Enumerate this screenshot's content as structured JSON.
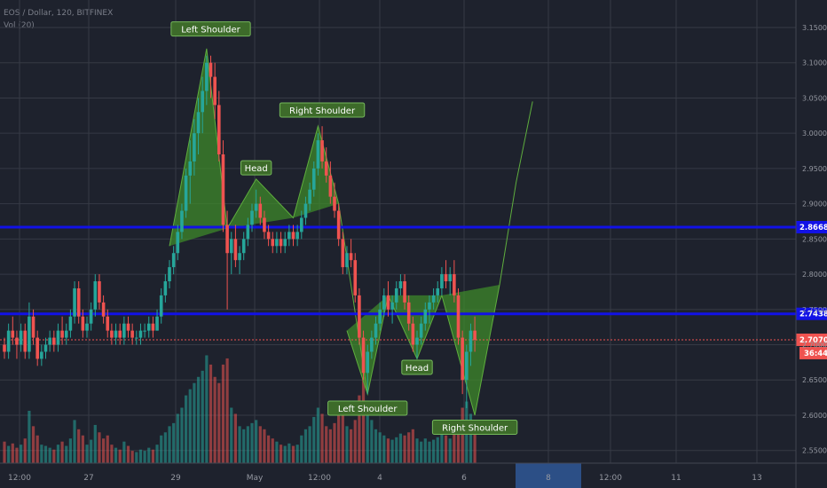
{
  "header": {
    "symbol_line": "EOS / Dollar, 120, BITFINEX",
    "volume_line": "Vol (20)"
  },
  "colors": {
    "background": "#1e222d",
    "up": "#26a69a",
    "down": "#ef5350",
    "pattern_fill": "#3e8e2a",
    "support_line": "#1212e6",
    "price_label": "#ef5350"
  },
  "chart_data": {
    "type": "candlestick",
    "y_axis": {
      "ticks": [
        "2.5500",
        "2.6000",
        "2.6500",
        "2.7000",
        "2.7500",
        "2.8000",
        "2.8500",
        "2.9000",
        "2.9500",
        "3.0000",
        "3.0500",
        "3.1000",
        "3.1500"
      ],
      "range": [
        2.532,
        3.189
      ]
    },
    "x_axis": {
      "ticks": [
        "12:00",
        "27",
        "29",
        "May",
        "12:00",
        "4",
        "6",
        "8",
        "12:00",
        "11",
        "13"
      ],
      "highlighted_tick": "8"
    },
    "horizontal_levels": [
      {
        "label": "2.8668",
        "value": 2.8668,
        "color": "#1212e6"
      },
      {
        "label": "2.7438",
        "value": 2.7438,
        "color": "#1212e6"
      }
    ],
    "current_price": {
      "label": "2.7070",
      "value": 2.707,
      "countdown": "36:44"
    },
    "annotations": [
      {
        "text": "Left Shoulder",
        "index": 50,
        "price": 3.148
      },
      {
        "text": "Head",
        "index": 61,
        "price": 2.951
      },
      {
        "text": "Right Shoulder",
        "index": 77,
        "price": 3.033
      },
      {
        "text": "Left Shoulder",
        "index": 88,
        "price": 2.61
      },
      {
        "text": "Head",
        "index": 100,
        "price": 2.668
      },
      {
        "text": "Right Shoulder",
        "index": 114,
        "price": 2.583
      }
    ],
    "patterns": [
      {
        "name": "top-head-and-shoulders",
        "points": [
          [
            40,
            2.84
          ],
          [
            49,
            3.12
          ],
          [
            54,
            2.865
          ],
          [
            61,
            2.935
          ],
          [
            70,
            2.88
          ],
          [
            76,
            3.01
          ],
          [
            81,
            2.9
          ]
        ]
      },
      {
        "name": "bottom-inverse-head-and-shoulders",
        "points": [
          [
            83,
            2.72
          ],
          [
            88,
            2.63
          ],
          [
            93,
            2.77
          ],
          [
            100,
            2.68
          ],
          [
            106,
            2.77
          ],
          [
            114,
            2.6
          ],
          [
            120,
            2.785
          ]
        ]
      }
    ],
    "projection": [
      [
        120,
        2.785
      ],
      [
        124,
        2.93
      ],
      [
        128,
        3.045
      ]
    ],
    "candles": [
      [
        2.7,
        2.71,
        2.68,
        2.69,
        35
      ],
      [
        2.69,
        2.73,
        2.68,
        2.72,
        28
      ],
      [
        2.72,
        2.74,
        2.7,
        2.71,
        32
      ],
      [
        2.71,
        2.72,
        2.68,
        2.7,
        25
      ],
      [
        2.7,
        2.73,
        2.69,
        2.72,
        30
      ],
      [
        2.72,
        2.73,
        2.68,
        2.69,
        40
      ],
      [
        2.69,
        2.76,
        2.68,
        2.74,
        85
      ],
      [
        2.74,
        2.75,
        2.7,
        2.71,
        60
      ],
      [
        2.71,
        2.72,
        2.67,
        2.68,
        45
      ],
      [
        2.68,
        2.7,
        2.67,
        2.69,
        30
      ],
      [
        2.69,
        2.71,
        2.68,
        2.7,
        28
      ],
      [
        2.7,
        2.72,
        2.69,
        2.71,
        25
      ],
      [
        2.71,
        2.72,
        2.69,
        2.7,
        22
      ],
      [
        2.7,
        2.73,
        2.69,
        2.72,
        30
      ],
      [
        2.72,
        2.74,
        2.7,
        2.71,
        35
      ],
      [
        2.71,
        2.73,
        2.7,
        2.72,
        28
      ],
      [
        2.72,
        2.75,
        2.71,
        2.74,
        40
      ],
      [
        2.74,
        2.79,
        2.73,
        2.78,
        70
      ],
      [
        2.78,
        2.79,
        2.73,
        2.74,
        55
      ],
      [
        2.74,
        2.75,
        2.71,
        2.72,
        45
      ],
      [
        2.72,
        2.74,
        2.71,
        2.73,
        30
      ],
      [
        2.73,
        2.76,
        2.72,
        2.75,
        38
      ],
      [
        2.75,
        2.8,
        2.74,
        2.79,
        62
      ],
      [
        2.79,
        2.8,
        2.75,
        2.76,
        50
      ],
      [
        2.76,
        2.77,
        2.73,
        2.74,
        40
      ],
      [
        2.74,
        2.75,
        2.71,
        2.72,
        45
      ],
      [
        2.72,
        2.73,
        2.7,
        2.71,
        30
      ],
      [
        2.71,
        2.73,
        2.7,
        2.72,
        25
      ],
      [
        2.72,
        2.73,
        2.7,
        2.71,
        22
      ],
      [
        2.71,
        2.74,
        2.7,
        2.73,
        35
      ],
      [
        2.73,
        2.74,
        2.71,
        2.72,
        28
      ],
      [
        2.72,
        2.73,
        2.7,
        2.71,
        20
      ],
      [
        2.71,
        2.72,
        2.7,
        2.71,
        18
      ],
      [
        2.71,
        2.73,
        2.7,
        2.72,
        22
      ],
      [
        2.72,
        2.73,
        2.71,
        2.72,
        20
      ],
      [
        2.72,
        2.74,
        2.71,
        2.73,
        25
      ],
      [
        2.73,
        2.74,
        2.71,
        2.72,
        22
      ],
      [
        2.72,
        2.75,
        2.72,
        2.74,
        30
      ],
      [
        2.74,
        2.78,
        2.73,
        2.77,
        45
      ],
      [
        2.77,
        2.8,
        2.76,
        2.79,
        50
      ],
      [
        2.79,
        2.82,
        2.78,
        2.81,
        60
      ],
      [
        2.81,
        2.84,
        2.8,
        2.83,
        65
      ],
      [
        2.83,
        2.87,
        2.82,
        2.86,
        80
      ],
      [
        2.86,
        2.9,
        2.85,
        2.89,
        90
      ],
      [
        2.89,
        2.95,
        2.88,
        2.94,
        110
      ],
      [
        2.94,
        2.99,
        2.9,
        2.96,
        120
      ],
      [
        2.96,
        3.02,
        2.94,
        3.0,
        130
      ],
      [
        3.0,
        3.05,
        2.97,
        3.03,
        140
      ],
      [
        3.03,
        3.08,
        3.0,
        3.06,
        150
      ],
      [
        3.06,
        3.11,
        3.04,
        3.1,
        175
      ],
      [
        3.1,
        3.11,
        3.05,
        3.08,
        160
      ],
      [
        3.08,
        3.1,
        3.02,
        3.04,
        140
      ],
      [
        3.04,
        3.06,
        2.96,
        2.97,
        130
      ],
      [
        2.97,
        2.99,
        2.86,
        2.87,
        160
      ],
      [
        2.87,
        2.89,
        2.75,
        2.83,
        170
      ],
      [
        2.83,
        2.86,
        2.8,
        2.85,
        90
      ],
      [
        2.85,
        2.87,
        2.81,
        2.82,
        80
      ],
      [
        2.82,
        2.84,
        2.8,
        2.83,
        60
      ],
      [
        2.83,
        2.86,
        2.82,
        2.85,
        55
      ],
      [
        2.85,
        2.88,
        2.84,
        2.87,
        60
      ],
      [
        2.87,
        2.9,
        2.86,
        2.89,
        65
      ],
      [
        2.89,
        2.92,
        2.88,
        2.9,
        70
      ],
      [
        2.9,
        2.91,
        2.87,
        2.88,
        60
      ],
      [
        2.88,
        2.89,
        2.85,
        2.86,
        55
      ],
      [
        2.86,
        2.87,
        2.84,
        2.85,
        45
      ],
      [
        2.85,
        2.86,
        2.83,
        2.84,
        40
      ],
      [
        2.84,
        2.86,
        2.83,
        2.85,
        35
      ],
      [
        2.85,
        2.86,
        2.83,
        2.84,
        30
      ],
      [
        2.84,
        2.86,
        2.83,
        2.85,
        28
      ],
      [
        2.85,
        2.87,
        2.84,
        2.86,
        32
      ],
      [
        2.86,
        2.87,
        2.84,
        2.85,
        28
      ],
      [
        2.85,
        2.87,
        2.84,
        2.86,
        30
      ],
      [
        2.86,
        2.89,
        2.85,
        2.88,
        45
      ],
      [
        2.88,
        2.91,
        2.87,
        2.9,
        55
      ],
      [
        2.9,
        2.93,
        2.89,
        2.92,
        60
      ],
      [
        2.92,
        2.96,
        2.91,
        2.95,
        75
      ],
      [
        2.95,
        3.0,
        2.94,
        2.99,
        90
      ],
      [
        2.99,
        3.01,
        2.95,
        2.96,
        80
      ],
      [
        2.96,
        2.98,
        2.93,
        2.94,
        60
      ],
      [
        2.94,
        2.96,
        2.9,
        2.91,
        55
      ],
      [
        2.91,
        2.93,
        2.88,
        2.89,
        65
      ],
      [
        2.89,
        2.9,
        2.84,
        2.85,
        80
      ],
      [
        2.85,
        2.86,
        2.8,
        2.81,
        90
      ],
      [
        2.81,
        2.84,
        2.8,
        2.83,
        60
      ],
      [
        2.83,
        2.85,
        2.81,
        2.82,
        55
      ],
      [
        2.82,
        2.83,
        2.76,
        2.77,
        70
      ],
      [
        2.77,
        2.78,
        2.7,
        2.71,
        110
      ],
      [
        2.71,
        2.72,
        2.65,
        2.66,
        140
      ],
      [
        2.66,
        2.7,
        2.63,
        2.69,
        100
      ],
      [
        2.69,
        2.72,
        2.68,
        2.71,
        70
      ],
      [
        2.71,
        2.74,
        2.7,
        2.73,
        55
      ],
      [
        2.73,
        2.76,
        2.72,
        2.75,
        50
      ],
      [
        2.75,
        2.78,
        2.74,
        2.77,
        45
      ],
      [
        2.77,
        2.79,
        2.74,
        2.75,
        40
      ],
      [
        2.75,
        2.77,
        2.73,
        2.76,
        38
      ],
      [
        2.76,
        2.79,
        2.75,
        2.78,
        42
      ],
      [
        2.78,
        2.8,
        2.77,
        2.79,
        48
      ],
      [
        2.79,
        2.8,
        2.75,
        2.76,
        45
      ],
      [
        2.76,
        2.77,
        2.72,
        2.73,
        50
      ],
      [
        2.73,
        2.74,
        2.69,
        2.7,
        55
      ],
      [
        2.7,
        2.72,
        2.68,
        2.71,
        40
      ],
      [
        2.71,
        2.74,
        2.7,
        2.73,
        35
      ],
      [
        2.73,
        2.76,
        2.72,
        2.75,
        40
      ],
      [
        2.75,
        2.77,
        2.73,
        2.76,
        35
      ],
      [
        2.76,
        2.78,
        2.75,
        2.77,
        38
      ],
      [
        2.77,
        2.79,
        2.76,
        2.78,
        42
      ],
      [
        2.78,
        2.81,
        2.77,
        2.8,
        50
      ],
      [
        2.8,
        2.82,
        2.78,
        2.79,
        45
      ],
      [
        2.79,
        2.81,
        2.77,
        2.8,
        40
      ],
      [
        2.8,
        2.82,
        2.76,
        2.77,
        50
      ],
      [
        2.77,
        2.78,
        2.7,
        2.71,
        60
      ],
      [
        2.71,
        2.72,
        2.63,
        2.65,
        90
      ],
      [
        2.65,
        2.7,
        2.61,
        2.69,
        100
      ],
      [
        2.69,
        2.73,
        2.67,
        2.72,
        80
      ],
      [
        2.72,
        2.74,
        2.69,
        2.707,
        50
      ]
    ]
  }
}
